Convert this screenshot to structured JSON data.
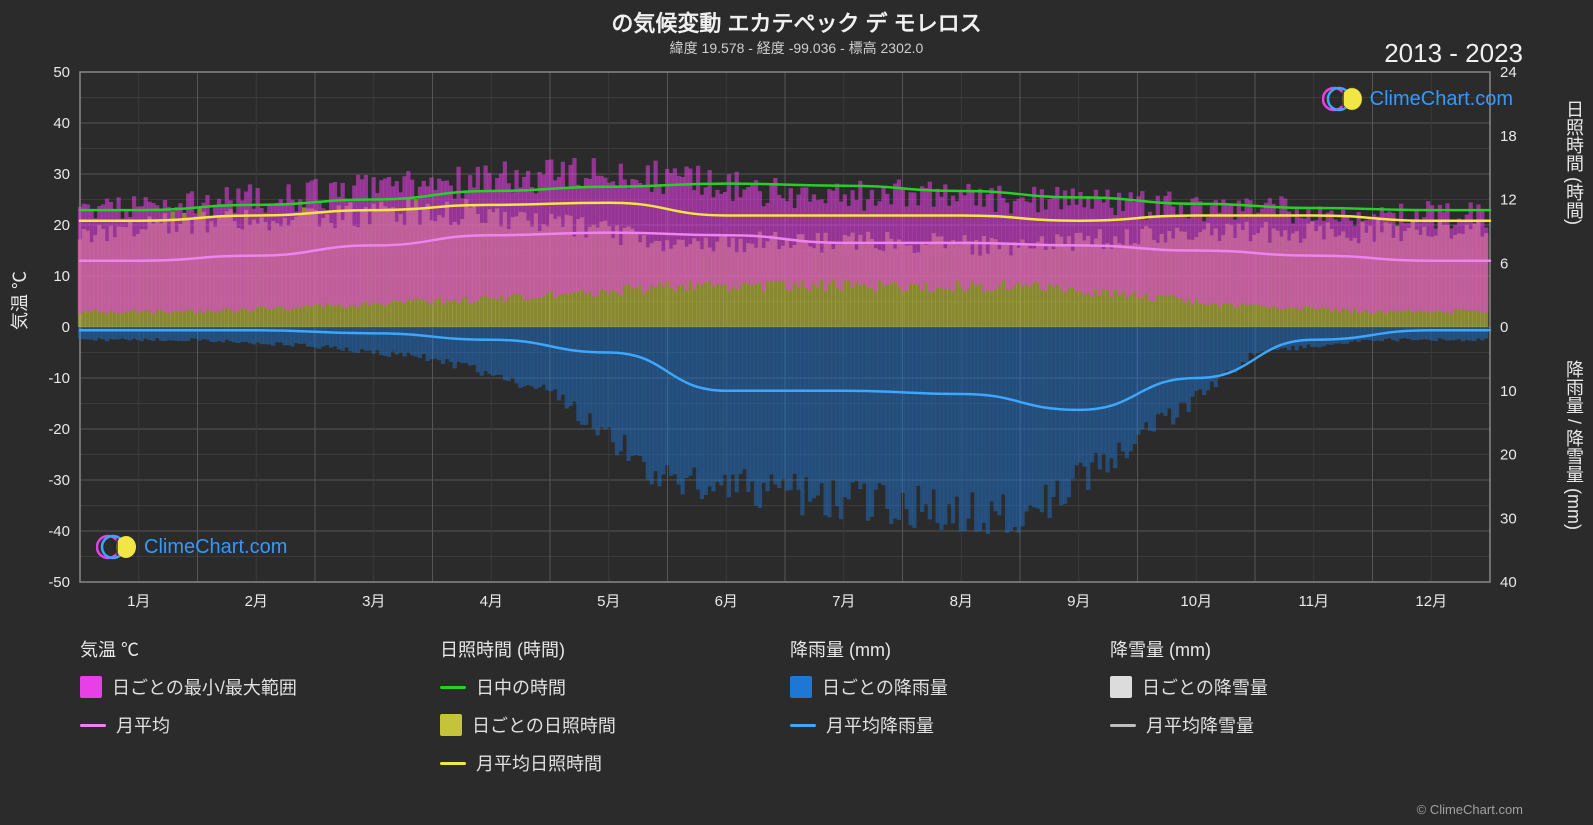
{
  "title": "の気候変動 エカテペック デ モレロス",
  "subtitle": "緯度 19.578 - 経度 -99.036 - 標高 2302.0",
  "year_range": "2013 - 2023",
  "brand": "ClimeChart.com",
  "copyright": "© ClimeChart.com",
  "chart": {
    "type": "climate-multi-axis-line-band",
    "background_color": "#2b2b2b",
    "plot_background": "#2b2b2b",
    "grid_color_minor": "#3a3a3a",
    "grid_color_major": "#555555",
    "tick_color": "#e8e8e8",
    "tick_fontsize": 15,
    "axis_left": {
      "label": "気温 ℃",
      "min": -50,
      "max": 50,
      "step": 10,
      "ticks": [
        -50,
        -40,
        -30,
        -20,
        -10,
        0,
        10,
        20,
        30,
        40,
        50
      ]
    },
    "axis_right_top": {
      "label": "日照時間 (時間)",
      "min": 0,
      "max": 24,
      "step": 6,
      "ticks": [
        0,
        6,
        12,
        18,
        24
      ]
    },
    "axis_right_bot": {
      "label": "降雨量 / 降雪量 (mm)",
      "min": 0,
      "max": 40,
      "step": 10,
      "ticks": [
        0,
        10,
        20,
        30,
        40
      ],
      "inverted": true
    },
    "xaxis": {
      "months": [
        "1月",
        "2月",
        "3月",
        "4月",
        "5月",
        "6月",
        "7月",
        "8月",
        "9月",
        "10月",
        "11月",
        "12月"
      ]
    },
    "series": {
      "temp_range_band": {
        "kind": "band",
        "color": "#e83fe8",
        "opacity": 0.55,
        "min": [
          3,
          3,
          4,
          5,
          6,
          8,
          8,
          8,
          8,
          6,
          4,
          3
        ],
        "max": [
          22,
          24,
          26,
          28,
          30,
          29,
          26,
          26,
          25,
          24,
          23,
          22
        ]
      },
      "temp_avg_line": {
        "kind": "line",
        "color": "#ee82ee",
        "width": 2.5,
        "values": [
          13,
          14,
          16,
          18,
          18.5,
          18,
          16.5,
          16.5,
          16,
          15,
          14,
          13
        ]
      },
      "daylight_line": {
        "kind": "line",
        "color": "#26d126",
        "width": 2.5,
        "axis": "right_top",
        "values": [
          11,
          11.5,
          12,
          12.8,
          13.2,
          13.5,
          13.3,
          12.8,
          12.2,
          11.6,
          11.2,
          11
        ]
      },
      "sunshine_band": {
        "kind": "band",
        "color": "#c4c43a",
        "opacity": 0.6,
        "axis": "right_top",
        "min": [
          0,
          0,
          0,
          0,
          0,
          0,
          0,
          0,
          0,
          0,
          0,
          0
        ],
        "max": [
          9,
          10,
          10.5,
          11,
          10,
          8,
          8,
          8,
          7.5,
          8.5,
          9,
          9
        ]
      },
      "sunshine_avg_line": {
        "kind": "line",
        "color": "#f2e645",
        "width": 2.5,
        "axis": "right_top",
        "values": [
          10,
          10.5,
          11,
          11.5,
          11.7,
          10.5,
          10.5,
          10.5,
          10,
          10.5,
          10.5,
          10
        ]
      },
      "rain_band": {
        "kind": "band",
        "color": "#1f77d4",
        "opacity": 0.45,
        "axis": "right_bot",
        "inverted": true,
        "min": [
          0,
          0,
          0,
          0,
          0,
          0,
          0,
          0,
          0,
          0,
          0,
          0
        ],
        "max": [
          2,
          2,
          3,
          5,
          10,
          24,
          26,
          28,
          30,
          18,
          4,
          2
        ]
      },
      "rain_avg_line": {
        "kind": "line",
        "color": "#3da6ff",
        "width": 2.5,
        "axis": "right_bot",
        "inverted": true,
        "values": [
          0.5,
          0.5,
          1,
          2,
          4,
          10,
          10,
          10.5,
          13,
          8,
          2,
          0.5
        ]
      }
    }
  },
  "legend": {
    "col1_header": "気温 ℃",
    "col1_items": [
      {
        "swatch_type": "box",
        "color": "#e83fe8",
        "label": "日ごとの最小/最大範囲"
      },
      {
        "swatch_type": "line",
        "color": "#ee82ee",
        "label": "月平均"
      }
    ],
    "col2_header": "日照時間 (時間)",
    "col2_items": [
      {
        "swatch_type": "line",
        "color": "#26d126",
        "label": "日中の時間"
      },
      {
        "swatch_type": "box",
        "color": "#c4c43a",
        "label": "日ごとの日照時間"
      },
      {
        "swatch_type": "line",
        "color": "#f2e645",
        "label": "月平均日照時間"
      }
    ],
    "col3_header": "降雨量 (mm)",
    "col3_items": [
      {
        "swatch_type": "box",
        "color": "#1f77d4",
        "label": "日ごとの降雨量"
      },
      {
        "swatch_type": "line",
        "color": "#3da6ff",
        "label": "月平均降雨量"
      }
    ],
    "col4_header": "降雪量 (mm)",
    "col4_items": [
      {
        "swatch_type": "box",
        "color": "#dcdcdc",
        "label": "日ごとの降雪量"
      },
      {
        "swatch_type": "line",
        "color": "#bfbfbf",
        "label": "月平均降雪量"
      }
    ]
  },
  "logo_colors": {
    "ring1": "#e83fe8",
    "ring2": "#3da6ff",
    "disc": "#f2e645",
    "disc_shadow": "#8a8a2a"
  }
}
